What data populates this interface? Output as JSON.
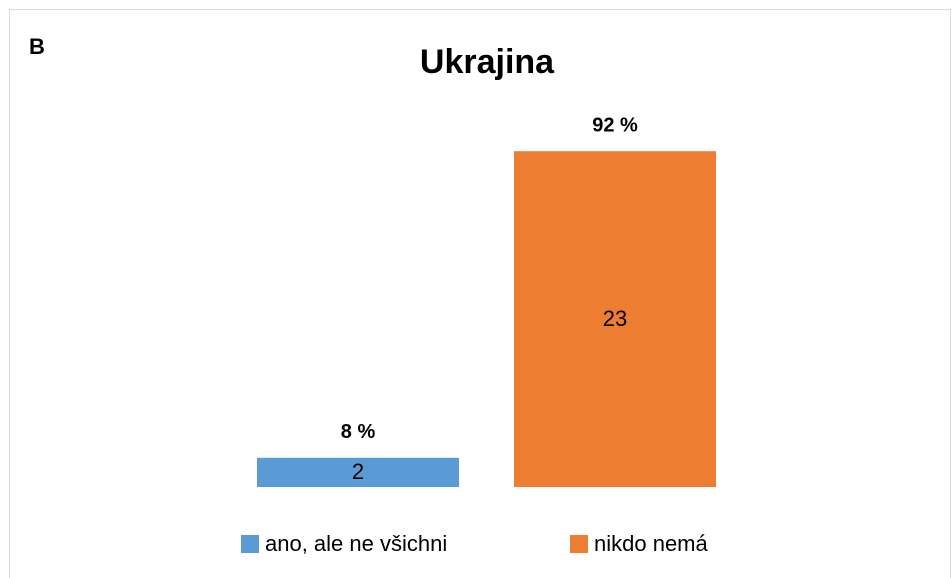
{
  "panel_label": "B",
  "chart_data": {
    "type": "bar",
    "title": "Ukrajina",
    "series": [
      {
        "name": "ano, ale ne všichni",
        "color": "#5b9bd5",
        "values": [
          2
        ],
        "shares": [
          8
        ],
        "share_labels": [
          "8 %"
        ]
      },
      {
        "name": "nikdo nemá",
        "color": "#ed7d31",
        "values": [
          23
        ],
        "shares": [
          92
        ],
        "share_labels": [
          "92 %"
        ]
      }
    ],
    "ylim": [
      0,
      25
    ],
    "legend": "bottom"
  }
}
